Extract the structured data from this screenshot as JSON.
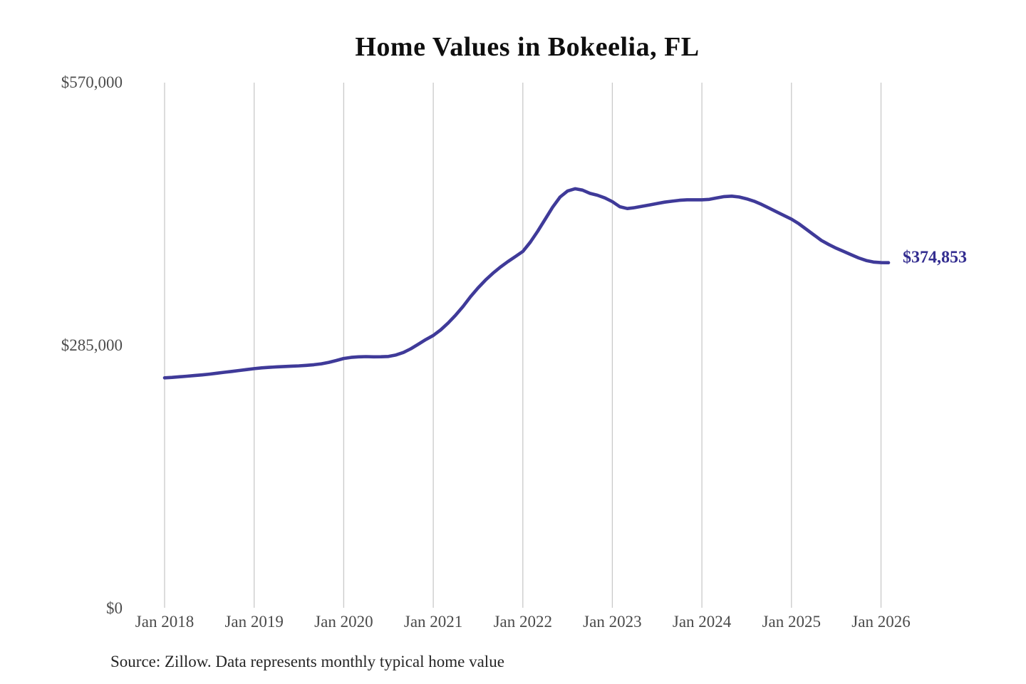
{
  "chart": {
    "title": "Home Values in Bokeelia, FL",
    "end_label": "$374,853",
    "source": "Source: Zillow. Data represents monthly typical home value"
  },
  "colors": {
    "line": "#3f3a99",
    "end_label_text": "#332d90",
    "gridline": "#c9c9c9",
    "axis_text": "#4a4a4a",
    "title_text": "#0f0f0f",
    "source_text": "#262626",
    "background": "#ffffff"
  },
  "chart_data": {
    "type": "line",
    "title": "Home Values in Bokeelia, FL",
    "xlabel": "",
    "ylabel": "",
    "ylim": [
      0,
      570000
    ],
    "grid": "vertical-only",
    "legend": "none",
    "x_interval": "monthly",
    "x_start": "Jan 2018",
    "y_ticks": [
      {
        "label": "$570,000",
        "value": 570000
      },
      {
        "label": "$285,000",
        "value": 285000
      },
      {
        "label": "$0",
        "value": 0
      }
    ],
    "x_ticks": [
      {
        "label": "Jan 2018",
        "month_index": 0
      },
      {
        "label": "Jan 2019",
        "month_index": 12
      },
      {
        "label": "Jan 2020",
        "month_index": 24
      },
      {
        "label": "Jan 2021",
        "month_index": 36
      },
      {
        "label": "Jan 2022",
        "month_index": 48
      },
      {
        "label": "Jan 2023",
        "month_index": 60
      },
      {
        "label": "Jan 2024",
        "month_index": 72
      },
      {
        "label": "Jan 2025",
        "month_index": 84
      },
      {
        "label": "Jan 2026",
        "month_index": 96
      }
    ],
    "final_value": 374853,
    "series": [
      {
        "name": "Typical home value",
        "values": [
          250000,
          250500,
          251200,
          251800,
          252500,
          253200,
          254000,
          255000,
          256000,
          257000,
          258000,
          259000,
          260000,
          260800,
          261400,
          261900,
          262300,
          262700,
          263000,
          263500,
          264200,
          265200,
          266800,
          268800,
          271000,
          272200,
          272800,
          273000,
          272800,
          272900,
          273200,
          274800,
          277500,
          281500,
          286500,
          291500,
          296000,
          302000,
          309500,
          318000,
          327500,
          338000,
          347500,
          356000,
          363500,
          370000,
          376000,
          381500,
          387000,
          397000,
          409000,
          422000,
          435000,
          446000,
          452500,
          455000,
          453500,
          450000,
          448000,
          445000,
          441000,
          435500,
          433500,
          434500,
          436000,
          437500,
          439000,
          440500,
          441500,
          442500,
          443000,
          443000,
          443000,
          443500,
          445000,
          446500,
          447000,
          446000,
          444000,
          441500,
          438000,
          434000,
          430000,
          426000,
          422000,
          417000,
          411000,
          405000,
          399000,
          394500,
          390500,
          387000,
          383500,
          380000,
          377200,
          375500,
          374900,
          374853
        ]
      }
    ]
  }
}
